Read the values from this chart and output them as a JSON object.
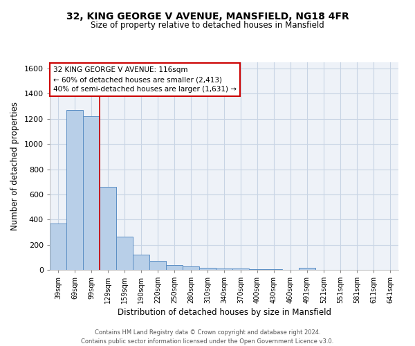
{
  "title1": "32, KING GEORGE V AVENUE, MANSFIELD, NG18 4FR",
  "title2": "Size of property relative to detached houses in Mansfield",
  "xlabel": "Distribution of detached houses by size in Mansfield",
  "ylabel": "Number of detached properties",
  "footer1": "Contains HM Land Registry data © Crown copyright and database right 2024.",
  "footer2": "Contains public sector information licensed under the Open Government Licence v3.0.",
  "categories": [
    "39sqm",
    "69sqm",
    "99sqm",
    "129sqm",
    "159sqm",
    "190sqm",
    "220sqm",
    "250sqm",
    "280sqm",
    "310sqm",
    "340sqm",
    "370sqm",
    "400sqm",
    "430sqm",
    "460sqm",
    "491sqm",
    "521sqm",
    "551sqm",
    "581sqm",
    "611sqm",
    "641sqm"
  ],
  "values": [
    370,
    1270,
    1220,
    660,
    265,
    120,
    70,
    38,
    25,
    15,
    12,
    10,
    8,
    5,
    0,
    18,
    0,
    0,
    0,
    0,
    0
  ],
  "bar_color": "#b8cfe8",
  "bar_edge_color": "#5b8ec4",
  "grid_color": "#c8d4e4",
  "background_color": "#eef2f8",
  "red_line_x": 2.5,
  "annotation_text": "32 KING GEORGE V AVENUE: 116sqm\n← 60% of detached houses are smaller (2,413)\n40% of semi-detached houses are larger (1,631) →",
  "annotation_box_color": "#ffffff",
  "annotation_box_edge": "#cc0000",
  "ylim": [
    0,
    1650
  ],
  "yticks": [
    0,
    200,
    400,
    600,
    800,
    1000,
    1200,
    1400,
    1600
  ]
}
